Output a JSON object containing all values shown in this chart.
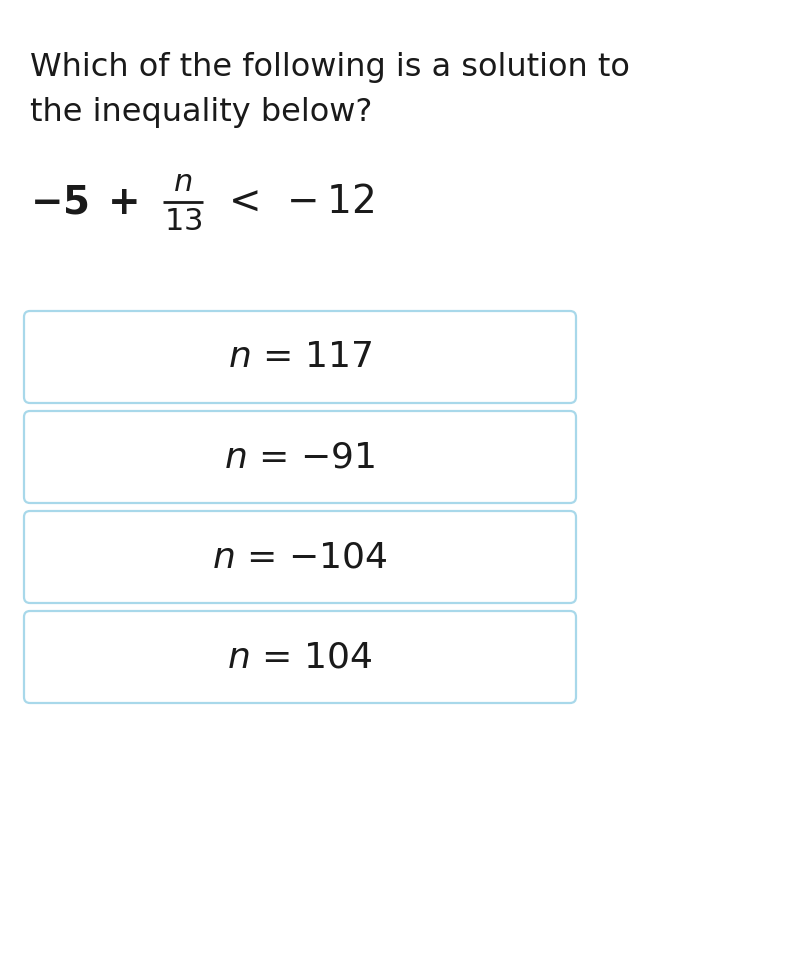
{
  "title_line1": "Which of the following is a solution to",
  "title_line2": "the inequality below?",
  "options": [
    [
      "n",
      " = 117"
    ],
    [
      "n",
      " = −91"
    ],
    [
      "n",
      " = −104"
    ],
    [
      "n",
      " = 104"
    ]
  ],
  "bg_color": "#ffffff",
  "text_color": "#1a1a1a",
  "box_border_color": "#a8d8ea",
  "box_fill_color": "#ffffff",
  "title_fontsize": 23,
  "equation_fontsize": 28,
  "option_fontsize": 26,
  "fig_width": 8.0,
  "fig_height": 9.57
}
